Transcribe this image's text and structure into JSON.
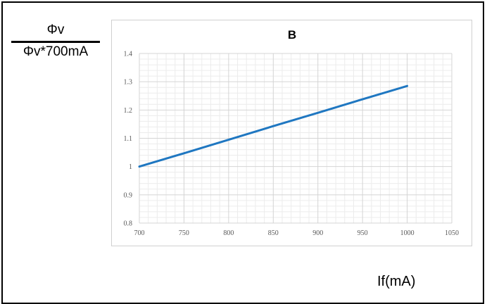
{
  "ylabel_num": "Φv",
  "ylabel_den": "Φv*700mA",
  "xlabel": "If(mA)",
  "chart_data": {
    "type": "line",
    "title": "B",
    "xlabel": "If(mA)",
    "ylabel": "Φv / Φv*700mA",
    "xlim": [
      700,
      1050
    ],
    "ylim": [
      0.8,
      1.4
    ],
    "xticks": [
      700,
      750,
      800,
      850,
      900,
      950,
      1000,
      1050
    ],
    "yticks": [
      0.8,
      0.9,
      1,
      1.1,
      1.2,
      1.3,
      1.4
    ],
    "ytick_labels": [
      "0.8",
      "0.9",
      "1",
      "1.1",
      "1.2",
      "1.3",
      "1.4"
    ],
    "grid": true,
    "series": [
      {
        "color": "#1f77c1",
        "x": [
          700,
          750,
          800,
          850,
          900,
          950,
          1000
        ],
        "y": [
          1.0,
          1.047,
          1.095,
          1.143,
          1.19,
          1.238,
          1.285
        ]
      }
    ]
  }
}
